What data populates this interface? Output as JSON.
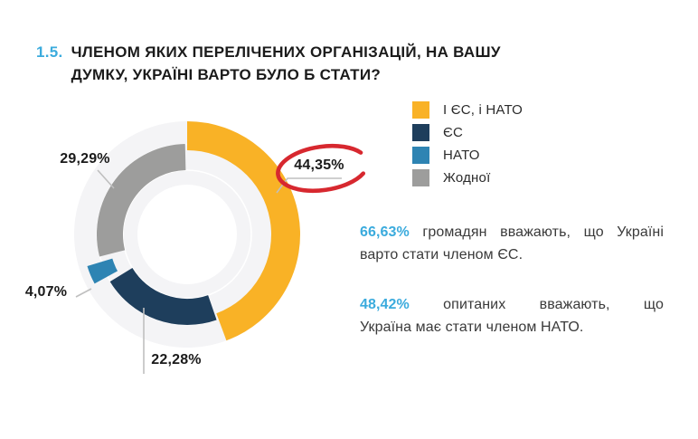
{
  "title": {
    "number": "1.5.",
    "text": "ЧЛЕНОМ ЯКИХ ПЕРЕЛІЧЕНИХ ОРГАНІЗАЦІЙ, НА ВАШУ ДУМКУ, УКРАЇНІ ВАРТО БУЛО Б СТАТИ?"
  },
  "colors": {
    "accent_blue": "#3BABDD",
    "annotation_red": "#D7282F",
    "leader_line": "#BFBFBF",
    "background_ring": "#F4F4F6",
    "text_dark": "#1B1B1B",
    "text_body": "#3A3A3A"
  },
  "chart_data": {
    "type": "pie",
    "subtype": "donut",
    "title": "Членом яких перелічених організацій, на вашу думку, Україні варто було б стати?",
    "legend_position": "right",
    "start_angle_deg": 0,
    "direction": "clockwise",
    "segments": [
      {
        "label": "І ЄС, і НАТО",
        "value": 44.35,
        "display": "44,35%",
        "color": "#F9B226"
      },
      {
        "label": "ЄС",
        "value": 22.28,
        "display": "22,28%",
        "color": "#1E3E5C"
      },
      {
        "label": "НАТО",
        "value": 4.07,
        "display": "4,07%",
        "color": "#2E84B3"
      },
      {
        "label": "Жодної",
        "value": 29.29,
        "display": "29,29%",
        "color": "#9D9D9C"
      }
    ],
    "annotations": [
      {
        "target": "44,35%",
        "style": "hand-drawn red circle"
      }
    ]
  },
  "insights": [
    {
      "highlight": "66,63%",
      "text_a": " громадян вважають, що Україні ",
      "text_b": "варто стати членом ЄС."
    },
    {
      "highlight": "48,42%",
      "text_a": " опитаних вважають, що ",
      "text_b": "Україна має стати членом НАТО."
    }
  ]
}
